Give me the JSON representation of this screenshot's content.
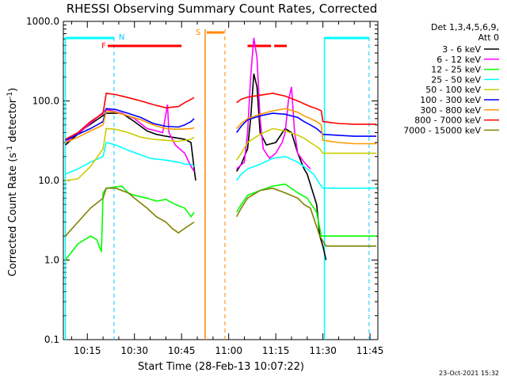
{
  "chart_data": {
    "type": "line",
    "title": "RHESSI Observing Summary Count Rates, Corrected",
    "xlabel": "Start Time (28-Feb-13 10:07:22)",
    "ylabel": "Corrected Count Rate (s⁻¹ detector⁻¹)",
    "ylabel_main": "Corrected Count Rate (s",
    "ylabel_sup1": "-1",
    "ylabel_mid": " detector",
    "ylabel_sup2": "-1",
    "ylabel_end": ")",
    "yscale": "log",
    "ylim": [
      0.1,
      1000
    ],
    "xlim_minutes": [
      7.367,
      107.5
    ],
    "x_unit": "minutes after 10:00 UT",
    "x_ticks": [
      {
        "label": "10:15",
        "m": 15
      },
      {
        "label": "10:30",
        "m": 30
      },
      {
        "label": "10:45",
        "m": 45
      },
      {
        "label": "11:00",
        "m": 60
      },
      {
        "label": "11:15",
        "m": 75
      },
      {
        "label": "11:30",
        "m": 90
      },
      {
        "label": "11:45",
        "m": 105
      }
    ],
    "y_ticks": [
      {
        "label": "1000.0",
        "v": 1000
      },
      {
        "label": "100.0",
        "v": 100
      },
      {
        "label": "10.0",
        "v": 10
      },
      {
        "label": "1.0",
        "v": 1
      },
      {
        "label": "0.1",
        "v": 0.1
      }
    ],
    "legend_header": [
      "Det 1,3,4,5,6,9,",
      "Att 0"
    ],
    "legend_position": "right",
    "series": [
      {
        "name": "3 - 6 keV",
        "color": "#000000",
        "points": [
          [
            8,
            28
          ],
          [
            14,
            45
          ],
          [
            21,
            70
          ],
          [
            26,
            70
          ],
          [
            30,
            55
          ],
          [
            34,
            42
          ],
          [
            37,
            38
          ],
          [
            40,
            36
          ],
          [
            42,
            35
          ],
          [
            46,
            33
          ],
          [
            48,
            30
          ],
          [
            49,
            14
          ],
          [
            49.5,
            10
          ],
          [
            55,
            null
          ],
          [
            62.5,
            13
          ],
          [
            64,
            16
          ],
          [
            66,
            25
          ],
          [
            67,
            60
          ],
          [
            68,
            220
          ],
          [
            69,
            150
          ],
          [
            70,
            40
          ],
          [
            72,
            28
          ],
          [
            75,
            30
          ],
          [
            78,
            45
          ],
          [
            80,
            40
          ],
          [
            82,
            22
          ],
          [
            84,
            14
          ],
          [
            85,
            12
          ],
          [
            88,
            5
          ],
          [
            89,
            2
          ],
          [
            90,
            1.5
          ],
          [
            91,
            1
          ]
        ]
      },
      {
        "name": "6 - 12 keV",
        "color": "#ff00ff",
        "points": [
          [
            8,
            30
          ],
          [
            14,
            45
          ],
          [
            21,
            78
          ],
          [
            26,
            70
          ],
          [
            30,
            60
          ],
          [
            34,
            45
          ],
          [
            37,
            42
          ],
          [
            39,
            40
          ],
          [
            40.5,
            90
          ],
          [
            41,
            40
          ],
          [
            43,
            28
          ],
          [
            46,
            22
          ],
          [
            48,
            15
          ],
          [
            49,
            13
          ],
          [
            55,
            null
          ],
          [
            62.5,
            14
          ],
          [
            65,
            17
          ],
          [
            66,
            40
          ],
          [
            67,
            200
          ],
          [
            68,
            620
          ],
          [
            69,
            350
          ],
          [
            70,
            60
          ],
          [
            71,
            25
          ],
          [
            73,
            19
          ],
          [
            75,
            22
          ],
          [
            77,
            30
          ],
          [
            78,
            40
          ],
          [
            79,
            100
          ],
          [
            80,
            150
          ],
          [
            81,
            40
          ],
          [
            82,
            22
          ],
          [
            84,
            17
          ],
          [
            86,
            14
          ]
        ]
      },
      {
        "name": "12 - 25 keV",
        "color": "#00ff00",
        "points": [
          [
            8,
            1
          ],
          [
            12,
            1.6
          ],
          [
            16,
            2
          ],
          [
            18,
            1.8
          ],
          [
            19,
            1.4
          ],
          [
            19.5,
            1.3
          ],
          [
            20,
            7
          ],
          [
            21,
            8
          ],
          [
            26,
            8.5
          ],
          [
            28,
            7
          ],
          [
            30,
            6.5
          ],
          [
            34,
            6
          ],
          [
            37,
            5.5
          ],
          [
            40,
            5.8
          ],
          [
            43,
            5
          ],
          [
            46,
            4.5
          ],
          [
            48,
            3.5
          ],
          [
            49,
            4
          ],
          [
            55,
            null
          ],
          [
            62.5,
            4
          ],
          [
            64,
            5
          ],
          [
            66,
            6.5
          ],
          [
            70,
            7.5
          ],
          [
            74,
            8.5
          ],
          [
            78,
            9
          ],
          [
            82,
            7
          ],
          [
            85,
            6
          ],
          [
            88,
            4
          ],
          [
            89.5,
            2
          ],
          [
            100,
            2
          ],
          [
            107,
            2
          ]
        ]
      },
      {
        "name": "25 - 50 keV",
        "color": "#00ffff",
        "points": [
          [
            8,
            12
          ],
          [
            12,
            14
          ],
          [
            16,
            17
          ],
          [
            20,
            20
          ],
          [
            21,
            30
          ],
          [
            24,
            28
          ],
          [
            28,
            24
          ],
          [
            32,
            21
          ],
          [
            35,
            19
          ],
          [
            40,
            18
          ],
          [
            44,
            17
          ],
          [
            46,
            16
          ],
          [
            48,
            16
          ],
          [
            49,
            15
          ],
          [
            55,
            null
          ],
          [
            62.5,
            10
          ],
          [
            64,
            12
          ],
          [
            66,
            14
          ],
          [
            70,
            16
          ],
          [
            74,
            19
          ],
          [
            78,
            20
          ],
          [
            82,
            17
          ],
          [
            84,
            15
          ],
          [
            87,
            12
          ],
          [
            89,
            9
          ],
          [
            90,
            8
          ],
          [
            95,
            8
          ],
          [
            100,
            8
          ],
          [
            105,
            8
          ],
          [
            107,
            8
          ]
        ]
      },
      {
        "name": "50 - 100 keV",
        "color": "#cccc00",
        "points": [
          [
            8,
            10
          ],
          [
            12,
            10.5
          ],
          [
            16,
            15
          ],
          [
            20,
            25
          ],
          [
            21,
            45
          ],
          [
            24,
            44
          ],
          [
            28,
            40
          ],
          [
            32,
            35
          ],
          [
            36,
            33
          ],
          [
            40,
            32
          ],
          [
            44,
            31
          ],
          [
            48,
            33
          ],
          [
            49,
            35
          ],
          [
            55,
            null
          ],
          [
            62.5,
            18
          ],
          [
            64,
            22
          ],
          [
            66,
            30
          ],
          [
            70,
            38
          ],
          [
            74,
            45
          ],
          [
            78,
            42
          ],
          [
            82,
            37
          ],
          [
            84,
            34
          ],
          [
            86,
            30
          ],
          [
            89,
            25
          ],
          [
            90,
            22
          ],
          [
            95,
            22
          ],
          [
            100,
            22
          ],
          [
            107,
            22
          ]
        ]
      },
      {
        "name": "100 - 300 keV",
        "color": "#0000ff",
        "points": [
          [
            8,
            32
          ],
          [
            12,
            38
          ],
          [
            16,
            45
          ],
          [
            20,
            55
          ],
          [
            21,
            80
          ],
          [
            24,
            78
          ],
          [
            28,
            70
          ],
          [
            32,
            62
          ],
          [
            36,
            52
          ],
          [
            40,
            48
          ],
          [
            44,
            47
          ],
          [
            46,
            50
          ],
          [
            48,
            55
          ],
          [
            49,
            60
          ],
          [
            55,
            null
          ],
          [
            62.5,
            40
          ],
          [
            64,
            48
          ],
          [
            66,
            58
          ],
          [
            70,
            65
          ],
          [
            74,
            70
          ],
          [
            78,
            68
          ],
          [
            82,
            62
          ],
          [
            84,
            55
          ],
          [
            86,
            50
          ],
          [
            88,
            45
          ],
          [
            89.5,
            40
          ],
          [
            90,
            38
          ],
          [
            95,
            37
          ],
          [
            100,
            36
          ],
          [
            107,
            36
          ]
        ]
      },
      {
        "name": "300 - 800 keV",
        "color": "#ff9900",
        "points": [
          [
            8,
            30
          ],
          [
            12,
            35
          ],
          [
            16,
            42
          ],
          [
            20,
            50
          ],
          [
            21,
            75
          ],
          [
            24,
            72
          ],
          [
            28,
            65
          ],
          [
            32,
            58
          ],
          [
            36,
            50
          ],
          [
            40,
            45
          ],
          [
            44,
            44
          ],
          [
            48,
            45
          ],
          [
            49,
            46
          ],
          [
            55,
            null
          ],
          [
            62.5,
            45
          ],
          [
            64,
            52
          ],
          [
            66,
            60
          ],
          [
            70,
            68
          ],
          [
            74,
            75
          ],
          [
            78,
            80
          ],
          [
            82,
            72
          ],
          [
            84,
            65
          ],
          [
            86,
            60
          ],
          [
            88,
            55
          ],
          [
            89.5,
            50
          ],
          [
            90,
            32
          ],
          [
            95,
            30
          ],
          [
            100,
            29
          ],
          [
            107,
            29
          ]
        ]
      },
      {
        "name": "800 - 7000 keV",
        "color": "#ff0000",
        "points": [
          [
            8,
            33
          ],
          [
            12,
            40
          ],
          [
            16,
            55
          ],
          [
            20,
            70
          ],
          [
            21,
            125
          ],
          [
            24,
            120
          ],
          [
            28,
            110
          ],
          [
            32,
            100
          ],
          [
            36,
            90
          ],
          [
            40,
            82
          ],
          [
            44,
            85
          ],
          [
            46,
            95
          ],
          [
            48,
            105
          ],
          [
            49,
            110
          ],
          [
            55,
            null
          ],
          [
            62.5,
            95
          ],
          [
            64,
            105
          ],
          [
            66,
            112
          ],
          [
            70,
            118
          ],
          [
            74,
            125
          ],
          [
            78,
            115
          ],
          [
            82,
            100
          ],
          [
            84,
            92
          ],
          [
            86,
            85
          ],
          [
            88,
            80
          ],
          [
            89.5,
            75
          ],
          [
            90,
            55
          ],
          [
            95,
            52
          ],
          [
            100,
            51
          ],
          [
            107,
            51
          ]
        ]
      },
      {
        "name": "7000 - 15000 keV",
        "color": "#808000",
        "points": [
          [
            8,
            2
          ],
          [
            12,
            3
          ],
          [
            16,
            4.5
          ],
          [
            20,
            6
          ],
          [
            21,
            8
          ],
          [
            24,
            8
          ],
          [
            28,
            7
          ],
          [
            30,
            6
          ],
          [
            34,
            4.5
          ],
          [
            37,
            3.5
          ],
          [
            40,
            3
          ],
          [
            42,
            2.5
          ],
          [
            44,
            2.2
          ],
          [
            46,
            2.5
          ],
          [
            49,
            3
          ],
          [
            55,
            null
          ],
          [
            62.5,
            3.5
          ],
          [
            64,
            4.5
          ],
          [
            66,
            6
          ],
          [
            70,
            7.5
          ],
          [
            74,
            8
          ],
          [
            78,
            7
          ],
          [
            82,
            6
          ],
          [
            84,
            5
          ],
          [
            86,
            4.5
          ],
          [
            89,
            2
          ],
          [
            91,
            1.5
          ],
          [
            95,
            1.5
          ],
          [
            100,
            1.5
          ],
          [
            107,
            1.5
          ]
        ]
      }
    ],
    "markers": [
      {
        "label": "N",
        "color": "#00ccff",
        "m": 23.5
      },
      {
        "label": "F",
        "color": "#ff0000",
        "m": 20.5
      },
      {
        "label": "S",
        "color": "#ff8800",
        "m": 52.5
      }
    ],
    "intervals": {
      "night_cyan": [
        [
          8.0,
          23.5
        ],
        [
          90.5,
          104.7
        ]
      ],
      "flare_red": [
        [
          21.5,
          45.0
        ],
        [
          66.0,
          73.5
        ],
        [
          74.5,
          78.5
        ]
      ],
      "saa_orange": [
        [
          53.0,
          58.5
        ]
      ]
    },
    "vlines": {
      "cyan_solid": [
        8.0,
        90.5
      ],
      "cyan_dash": [
        23.5,
        104.7
      ],
      "orange_solid": [
        52.5
      ],
      "orange_dash": [
        58.8
      ]
    },
    "timestamp": "23-Oct-2021 15:32"
  }
}
